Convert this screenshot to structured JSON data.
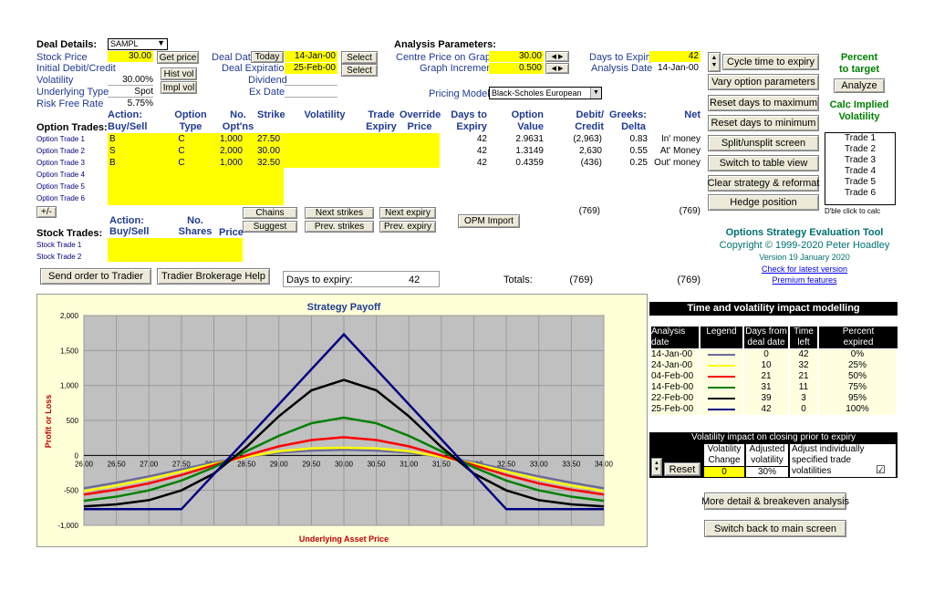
{
  "deal": {
    "label": "Deal Details:",
    "symbol": "SAMPL",
    "stock_price_label": "Stock Price",
    "stock_price": "30.00",
    "initial_label": "Initial Debit/Credit",
    "volatility_label": "Volatility",
    "volatility": "30.00%",
    "underlying_label": "Underlying Type",
    "underlying": "Spot",
    "risk_free_label": "Risk Free Rate",
    "risk_free": "5.75%",
    "get_price": "Get price",
    "hist_vol": "Hist vol",
    "impl_vol": "Impl vol",
    "deal_date_label": "Deal Date",
    "today": "Today",
    "deal_date": "14-Jan-00",
    "select": "Select",
    "deal_exp_label": "Deal Expiration",
    "deal_exp": "25-Feb-00",
    "dividend_label": "Dividend",
    "exdate_label": "Ex Date"
  },
  "analysis": {
    "label": "Analysis Parameters:",
    "centre_label": "Centre Price on Graph",
    "centre": "30.00",
    "increment_label": "Graph Increment",
    "increment": "0.500",
    "days_label": "Days to Expiry",
    "days": "42",
    "date_label": "Analysis Date",
    "date": "14-Jan-00",
    "model_label": "Pricing Model:",
    "model": "Black-Scholes European"
  },
  "option_trades": {
    "title": "Option Trades:",
    "headers": [
      "Action:\nBuy/Sell",
      "Option\nType",
      "No.\nOpt'ns",
      "Strike",
      "Volatility",
      "Trade\nExpiry",
      "Override\nPrice",
      "Days to\nExpiry",
      "Option\nValue",
      "Debit/\nCredit",
      "Greeks:\nDelta",
      "Net"
    ],
    "rows": [
      {
        "label": "Option Trade  1",
        "action": "B",
        "type": "C",
        "num": "1,000",
        "strike": "27.50",
        "days": "42",
        "value": "2.9631",
        "debit": "(2,963)",
        "delta": "0.83",
        "net": "In' money"
      },
      {
        "label": "Option Trade  2",
        "action": "S",
        "type": "C",
        "num": "2,000",
        "strike": "30.00",
        "days": "42",
        "value": "1.3149",
        "debit": "2,630",
        "delta": "0.55",
        "net": "At' Money"
      },
      {
        "label": "Option Trade  3",
        "action": "B",
        "type": "C",
        "num": "1,000",
        "strike": "32.50",
        "days": "42",
        "value": "0.4359",
        "debit": "(436)",
        "delta": "0.25",
        "net": "Out' money"
      },
      {
        "label": "Option Trade  4",
        "action": "",
        "type": "",
        "num": "",
        "strike": "",
        "days": "",
        "value": "",
        "debit": "",
        "delta": "",
        "net": ""
      },
      {
        "label": "Option Trade  5",
        "action": "",
        "type": "",
        "num": "",
        "strike": "",
        "days": "",
        "value": "",
        "debit": "",
        "delta": "",
        "net": ""
      },
      {
        "label": "Option Trade  6",
        "action": "",
        "type": "",
        "num": "",
        "strike": "",
        "days": "",
        "value": "",
        "debit": "",
        "delta": "",
        "net": ""
      }
    ],
    "plusminus": "+/-",
    "sum_debit": "(769)",
    "sum_net": "(769)"
  },
  "mid_buttons": {
    "chains": "Chains",
    "suggest": "Suggest",
    "next_strikes": "Next strikes",
    "prev_strikes": "Prev. strikes",
    "next_expiry": "Next expiry",
    "prev_expiry": "Prev. expiry",
    "opm_import": "OPM Import"
  },
  "stock_trades": {
    "title": "Stock Trades:",
    "h_action": "Action:\nBuy/Sell",
    "h_shares": "No.\nShares",
    "h_price": "Price",
    "rows": [
      "Stock Trade 1",
      "Stock Trade 2"
    ]
  },
  "footer_bar": {
    "send_order": "Send order to Tradier",
    "tradier_help": "Tradier Brokerage Help",
    "days_label": "Days to expiry:",
    "days": "42",
    "totals_label": "Totals:",
    "total_debit": "(769)",
    "total_net": "(769)"
  },
  "right_buttons": [
    "Cycle time to expiry",
    "Vary option parameters",
    "Reset days to maximum",
    "Reset days to minimum",
    "Split/unsplit screen",
    "Switch to table view",
    "Clear strategy & reformat",
    "Hedge position"
  ],
  "percent": {
    "title": "Percent\nto target",
    "analyze": "Analyze",
    "calc_title": "Calc Implied\nVolatility",
    "trades": [
      "Trade 1",
      "Trade 2",
      "Trade 3",
      "Trade 4",
      "Trade 5",
      "Trade 6"
    ],
    "dbl": "D'ble click to calc"
  },
  "about": {
    "title": "Options Strategy Evaluation Tool",
    "copyright": "Copyright © 1999-2020 Peter Hoadley",
    "version": "Version 19 January 2020",
    "check": "Check for latest version",
    "premium": "Premium features"
  },
  "time_vol": {
    "title": "Time and volatility impact modelling",
    "headers": [
      "Analysis\ndate",
      "Legend",
      "Days from\ndeal date",
      "Time\nleft",
      "Percent\nexpired"
    ],
    "rows": [
      {
        "date": "14-Jan-00",
        "color": "#6b6b9b",
        "days": "0",
        "left": "42",
        "pct": "0%"
      },
      {
        "date": "24-Jan-00",
        "color": "#ffff00",
        "days": "10",
        "left": "32",
        "pct": "25%"
      },
      {
        "date": "04-Feb-00",
        "color": "#ff0000",
        "days": "21",
        "left": "21",
        "pct": "50%"
      },
      {
        "date": "14-Feb-00",
        "color": "#008000",
        "days": "31",
        "left": "11",
        "pct": "75%"
      },
      {
        "date": "22-Feb-00",
        "color": "#000000",
        "days": "39",
        "left": "3",
        "pct": "95%"
      },
      {
        "date": "25-Feb-00",
        "color": "#000080",
        "days": "42",
        "left": "0",
        "pct": "100%"
      }
    ]
  },
  "vol_impact": {
    "title": "Volatility impact on closing prior to expiry",
    "h1": "Volatility\nChange",
    "h2": "Adjusted\nvolatility",
    "h3": "Adjust individually\nspecified trade\nvolatilities",
    "reset": "Reset",
    "change": "0",
    "adjusted": "30%",
    "checked": "☑"
  },
  "bottom_buttons": {
    "detail": "More detail & breakeven analysis",
    "switch_back": "Switch back to main screen"
  },
  "chart_data": {
    "type": "line",
    "title": "Strategy Payoff",
    "xlabel": "Underlying Asset Price",
    "ylabel": "Profit or Loss",
    "x": [
      26.0,
      26.5,
      27.0,
      27.5,
      28.0,
      28.5,
      29.0,
      29.5,
      30.0,
      30.5,
      31.0,
      31.5,
      32.0,
      32.5,
      33.0,
      33.5,
      34.0
    ],
    "x_ticks": [
      "26.00",
      "26.50",
      "27.00",
      "27.50",
      "28.00",
      "28.50",
      "29.00",
      "29.50",
      "30.00",
      "30.50",
      "31.00",
      "31.50",
      "32.00",
      "32.50",
      "33.00",
      "33.50",
      "34.00"
    ],
    "ylim": [
      -1000,
      2000
    ],
    "y_ticks": [
      "2,000",
      "1,500",
      "1,000",
      "500",
      "0",
      "-500",
      "-1,000"
    ],
    "grid": true,
    "series": [
      {
        "color": "#6b6b9b",
        "values": [
          -470,
          -390,
          -300,
          -200,
          -100,
          -20,
          40,
          70,
          80,
          70,
          40,
          -20,
          -100,
          -200,
          -300,
          -390,
          -470
        ]
      },
      {
        "color": "#ffff00",
        "values": [
          -510,
          -430,
          -340,
          -230,
          -120,
          -20,
          60,
          100,
          110,
          100,
          60,
          -20,
          -120,
          -230,
          -340,
          -430,
          -510
        ]
      },
      {
        "color": "#ff0000",
        "values": [
          -560,
          -490,
          -400,
          -280,
          -140,
          0,
          130,
          220,
          260,
          220,
          130,
          0,
          -140,
          -280,
          -400,
          -490,
          -560
        ]
      },
      {
        "color": "#008000",
        "values": [
          -650,
          -590,
          -500,
          -360,
          -170,
          60,
          280,
          460,
          540,
          460,
          280,
          60,
          -170,
          -360,
          -500,
          -590,
          -650
        ]
      },
      {
        "color": "#000000",
        "values": [
          -730,
          -700,
          -640,
          -500,
          -260,
          120,
          560,
          930,
          1080,
          930,
          560,
          120,
          -260,
          -500,
          -640,
          -700,
          -730
        ]
      },
      {
        "color": "#000080",
        "values": [
          -769,
          -769,
          -769,
          -769,
          -269,
          231,
          731,
          1231,
          1731,
          1231,
          731,
          231,
          -269,
          -769,
          -769,
          -769,
          -769
        ]
      }
    ]
  }
}
